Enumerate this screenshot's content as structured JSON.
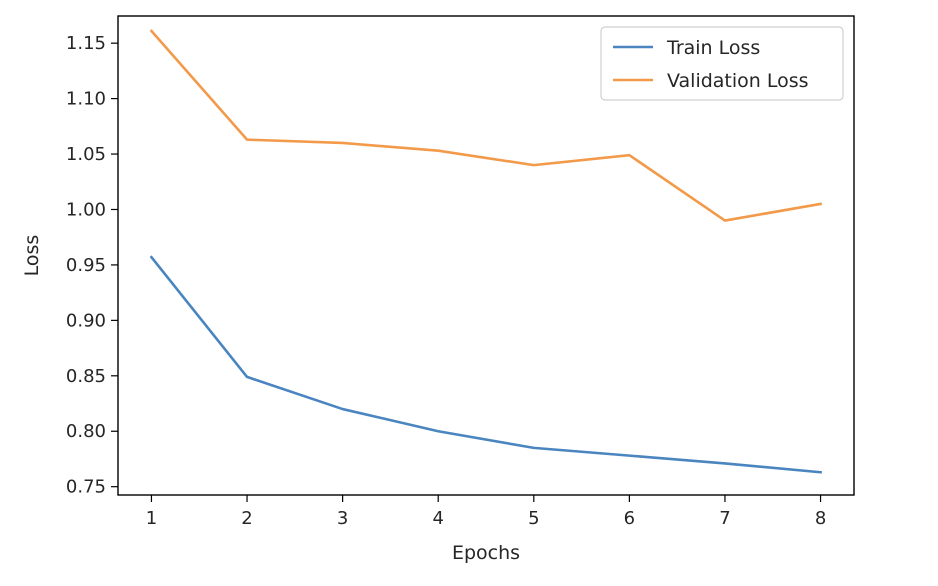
{
  "chart_data": {
    "type": "line",
    "title": "",
    "xlabel": "Epochs",
    "ylabel": "Loss",
    "x": [
      1,
      2,
      3,
      4,
      5,
      6,
      7,
      8
    ],
    "xticks": [
      "1",
      "2",
      "3",
      "4",
      "5",
      "6",
      "7",
      "8"
    ],
    "yticks": [
      "0.75",
      "0.80",
      "0.85",
      "0.90",
      "0.95",
      "1.00",
      "1.05",
      "1.10",
      "1.15"
    ],
    "xlim": [
      0.65,
      8.35
    ],
    "ylim": [
      0.7425,
      1.1745
    ],
    "grid": false,
    "legend_position": "top-right",
    "series": [
      {
        "name": "Train Loss",
        "color": "#4a85c0",
        "values": [
          0.957,
          0.849,
          0.82,
          0.8,
          0.785,
          0.778,
          0.771,
          0.763
        ]
      },
      {
        "name": "Validation Loss",
        "color": "#f39a4a",
        "values": [
          1.161,
          1.063,
          1.06,
          1.053,
          1.04,
          1.049,
          0.99,
          1.005
        ]
      }
    ]
  }
}
